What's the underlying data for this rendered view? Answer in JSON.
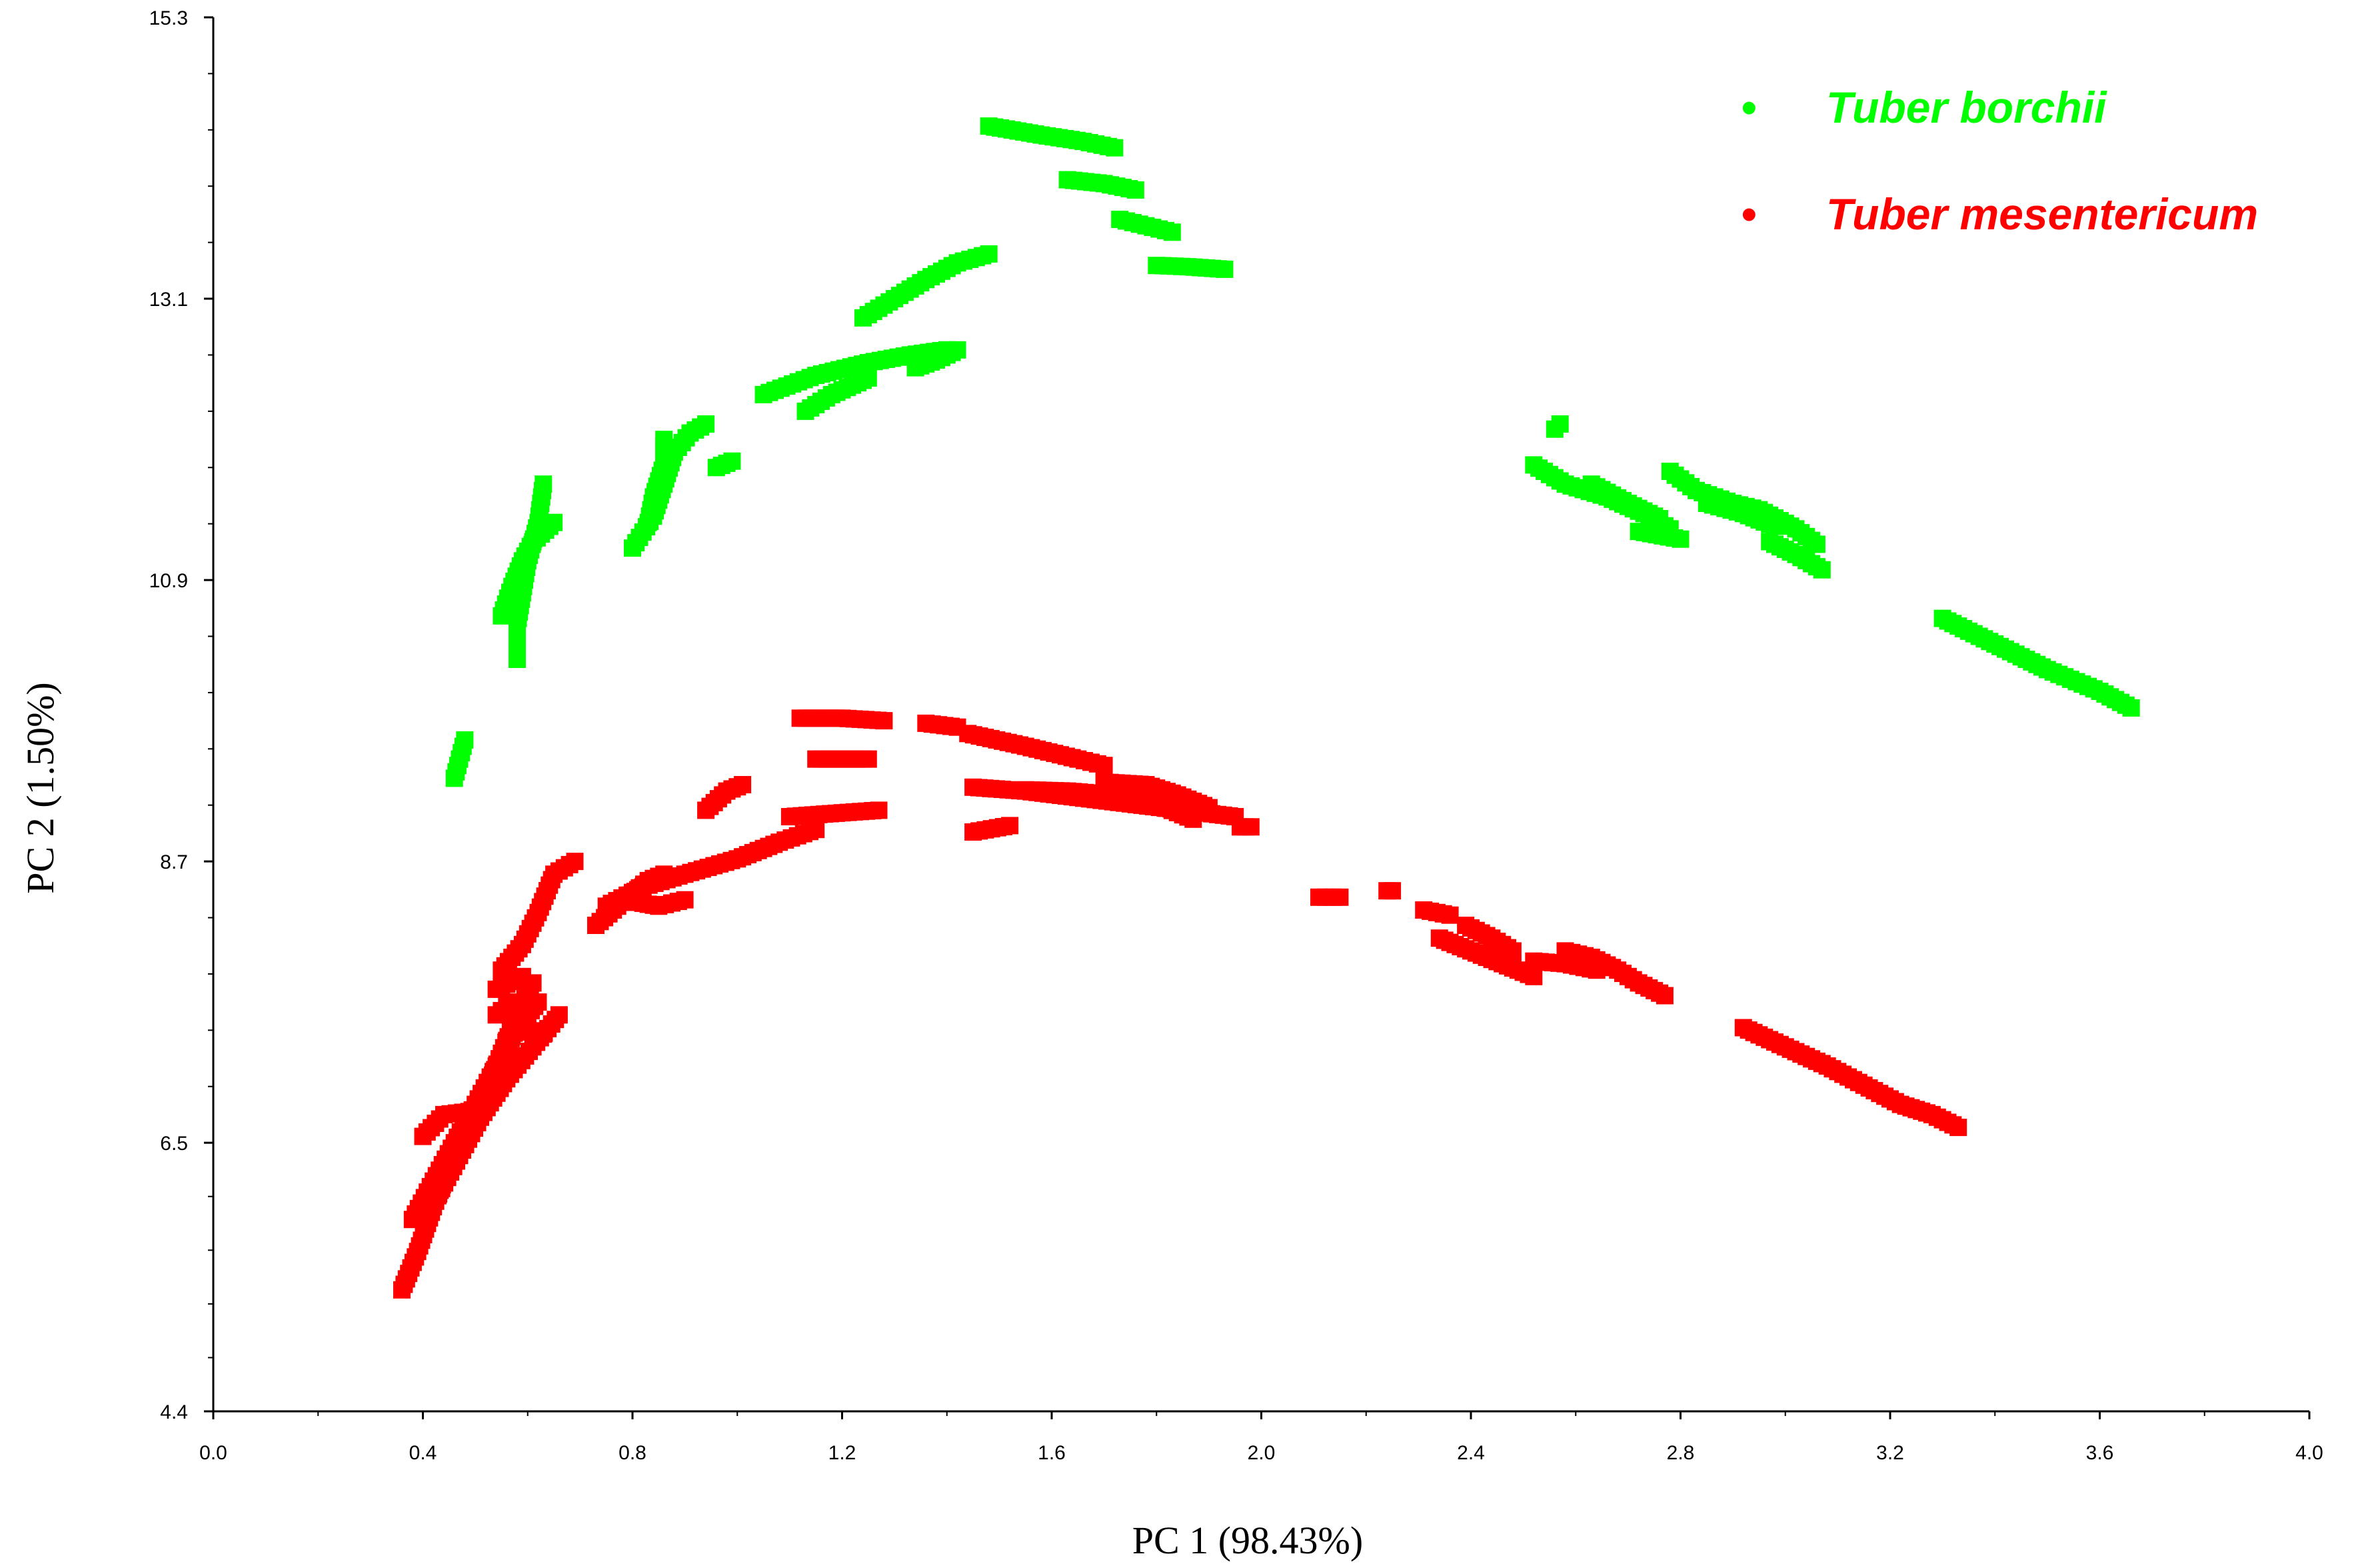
{
  "chart_data": {
    "type": "scatter",
    "title": "",
    "xlabel": "PC 1 (98.43%)",
    "ylabel": "PC 2 (1.50%)",
    "xlim": [
      0.0,
      4.0
    ],
    "ylim": [
      4.4,
      15.3
    ],
    "xticks": [
      "0.0",
      "0.4",
      "0.8",
      "1.2",
      "1.6",
      "2.0",
      "2.4",
      "2.8",
      "3.2",
      "3.6",
      "4.0"
    ],
    "yticks": [
      "4.4",
      "6.5",
      "8.7",
      "10.9",
      "13.1",
      "15.3"
    ],
    "grid": false,
    "legend_position": "top-right",
    "legend_marker": "•",
    "series": [
      {
        "name": "Tuber borchii",
        "color": "#00ff00",
        "segments": [
          [
            [
              1.48,
              14.45
            ],
            [
              1.58,
              14.38
            ],
            [
              1.66,
              14.33
            ],
            [
              1.72,
              14.28
            ]
          ],
          [
            [
              1.63,
              14.03
            ],
            [
              1.7,
              14.0
            ],
            [
              1.76,
              13.95
            ]
          ],
          [
            [
              1.73,
              13.72
            ],
            [
              1.78,
              13.67
            ],
            [
              1.83,
              13.62
            ]
          ],
          [
            [
              1.8,
              13.36
            ],
            [
              1.86,
              13.35
            ],
            [
              1.93,
              13.33
            ]
          ],
          [
            [
              1.24,
              12.95
            ],
            [
              1.3,
              13.1
            ],
            [
              1.36,
              13.25
            ],
            [
              1.42,
              13.38
            ],
            [
              1.48,
              13.45
            ]
          ],
          [
            [
              1.05,
              12.35
            ],
            [
              1.15,
              12.5
            ],
            [
              1.25,
              12.6
            ],
            [
              1.33,
              12.66
            ],
            [
              1.4,
              12.7
            ]
          ],
          [
            [
              1.13,
              12.22
            ],
            [
              1.18,
              12.35
            ],
            [
              1.25,
              12.48
            ]
          ],
          [
            [
              1.34,
              12.56
            ],
            [
              1.38,
              12.62
            ],
            [
              1.42,
              12.7
            ]
          ],
          [
            [
              0.8,
              11.15
            ],
            [
              0.84,
              11.4
            ],
            [
              0.86,
              11.65
            ],
            [
              0.88,
              11.9
            ],
            [
              0.91,
              12.05
            ],
            [
              0.94,
              12.12
            ]
          ],
          [
            [
              0.83,
              11.35
            ],
            [
              0.84,
              11.55
            ],
            [
              0.86,
              11.8
            ],
            [
              0.86,
              12.0
            ]
          ],
          [
            [
              0.96,
              11.78
            ],
            [
              0.99,
              11.83
            ]
          ],
          [
            [
              0.58,
              10.28
            ],
            [
              0.58,
              10.55
            ],
            [
              0.59,
              10.8
            ],
            [
              0.6,
              11.05
            ],
            [
              0.62,
              11.35
            ],
            [
              0.63,
              11.65
            ]
          ],
          [
            [
              0.55,
              10.62
            ],
            [
              0.57,
              10.85
            ],
            [
              0.59,
              11.05
            ],
            [
              0.61,
              11.2
            ],
            [
              0.65,
              11.35
            ]
          ],
          [
            [
              0.46,
              9.35
            ],
            [
              0.47,
              9.5
            ],
            [
              0.48,
              9.65
            ]
          ],
          [
            [
              2.57,
              12.12
            ],
            [
              2.56,
              12.08
            ]
          ],
          [
            [
              2.52,
              11.8
            ],
            [
              2.58,
              11.65
            ],
            [
              2.66,
              11.55
            ],
            [
              2.73,
              11.42
            ],
            [
              2.78,
              11.3
            ]
          ],
          [
            [
              2.63,
              11.65
            ],
            [
              2.7,
              11.5
            ],
            [
              2.76,
              11.38
            ]
          ],
          [
            [
              2.78,
              11.75
            ],
            [
              2.83,
              11.6
            ],
            [
              2.9,
              11.5
            ],
            [
              2.95,
              11.45
            ],
            [
              3.02,
              11.3
            ],
            [
              3.06,
              11.18
            ]
          ],
          [
            [
              2.72,
              11.28
            ],
            [
              2.8,
              11.22
            ]
          ],
          [
            [
              2.85,
              11.5
            ],
            [
              2.92,
              11.42
            ],
            [
              2.98,
              11.32
            ]
          ],
          [
            [
              2.97,
              11.2
            ],
            [
              3.02,
              11.1
            ],
            [
              3.07,
              10.98
            ]
          ],
          [
            [
              3.3,
              10.6
            ],
            [
              3.4,
              10.4
            ],
            [
              3.5,
              10.2
            ],
            [
              3.6,
              10.03
            ],
            [
              3.66,
              9.9
            ]
          ]
        ]
      },
      {
        "name": "Tuber mesentericum",
        "color": "#ff0000",
        "segments": [
          [
            [
              1.12,
              9.82
            ],
            [
              1.2,
              9.82
            ],
            [
              1.28,
              9.8
            ]
          ],
          [
            [
              1.36,
              9.78
            ],
            [
              1.42,
              9.75
            ]
          ],
          [
            [
              1.15,
              9.5
            ],
            [
              1.25,
              9.5
            ]
          ],
          [
            [
              1.44,
              9.7
            ],
            [
              1.55,
              9.6
            ],
            [
              1.65,
              9.5
            ],
            [
              1.7,
              9.45
            ]
          ],
          [
            [
              1.45,
              9.28
            ],
            [
              1.55,
              9.25
            ],
            [
              1.65,
              9.2
            ],
            [
              1.75,
              9.15
            ],
            [
              1.85,
              9.1
            ],
            [
              1.95,
              9.05
            ]
          ],
          [
            [
              1.55,
              9.26
            ],
            [
              1.63,
              9.25
            ],
            [
              1.72,
              9.22
            ],
            [
              1.8,
              9.15
            ],
            [
              1.87,
              9.03
            ]
          ],
          [
            [
              1.7,
              9.32
            ],
            [
              1.78,
              9.3
            ],
            [
              1.84,
              9.22
            ],
            [
              1.9,
              9.12
            ]
          ],
          [
            [
              1.45,
              8.93
            ],
            [
              1.52,
              8.98
            ]
          ],
          [
            [
              1.96,
              8.97
            ],
            [
              1.98,
              8.97
            ]
          ],
          [
            [
              0.94,
              9.1
            ],
            [
              0.98,
              9.25
            ],
            [
              1.01,
              9.3
            ]
          ],
          [
            [
              1.1,
              9.05
            ],
            [
              1.2,
              9.08
            ],
            [
              1.27,
              9.1
            ]
          ],
          [
            [
              0.75,
              8.35
            ],
            [
              0.82,
              8.5
            ],
            [
              0.9,
              8.6
            ],
            [
              1.0,
              8.72
            ],
            [
              1.08,
              8.85
            ],
            [
              1.15,
              8.95
            ]
          ],
          [
            [
              0.73,
              8.2
            ],
            [
              0.78,
              8.38
            ],
            [
              0.83,
              8.55
            ],
            [
              0.86,
              8.6
            ]
          ],
          [
            [
              0.81,
              8.38
            ],
            [
              0.85,
              8.35
            ],
            [
              0.9,
              8.4
            ]
          ],
          [
            [
              0.36,
              5.35
            ],
            [
              0.39,
              5.65
            ],
            [
              0.42,
              6.0
            ],
            [
              0.45,
              6.3
            ],
            [
              0.48,
              6.6
            ],
            [
              0.52,
              6.9
            ],
            [
              0.55,
              7.2
            ],
            [
              0.58,
              7.5
            ],
            [
              0.61,
              7.75
            ]
          ],
          [
            [
              0.38,
              5.9
            ],
            [
              0.42,
              6.2
            ],
            [
              0.46,
              6.5
            ],
            [
              0.5,
              6.8
            ],
            [
              0.54,
              7.1
            ],
            [
              0.58,
              7.4
            ],
            [
              0.62,
              7.6
            ]
          ],
          [
            [
              0.43,
              6.1
            ],
            [
              0.47,
              6.4
            ],
            [
              0.51,
              6.7
            ],
            [
              0.56,
              7.0
            ],
            [
              0.61,
              7.25
            ],
            [
              0.66,
              7.5
            ]
          ],
          [
            [
              0.54,
              7.5
            ],
            [
              0.57,
              7.6
            ],
            [
              0.6,
              7.55
            ]
          ],
          [
            [
              0.56,
              7.3
            ],
            [
              0.59,
              7.4
            ],
            [
              0.63,
              7.35
            ]
          ],
          [
            [
              0.4,
              6.55
            ],
            [
              0.44,
              6.72
            ],
            [
              0.5,
              6.75
            ]
          ],
          [
            [
              0.55,
              7.85
            ],
            [
              0.59,
              8.05
            ],
            [
              0.62,
              8.3
            ],
            [
              0.65,
              8.6
            ],
            [
              0.69,
              8.7
            ]
          ],
          [
            [
              0.54,
              7.7
            ],
            [
              0.59,
              7.8
            ]
          ],
          [
            [
              2.11,
              8.42
            ],
            [
              2.15,
              8.42
            ]
          ],
          [
            [
              2.24,
              8.47
            ],
            [
              2.25,
              8.47
            ]
          ],
          [
            [
              2.31,
              8.32
            ],
            [
              2.36,
              8.28
            ]
          ],
          [
            [
              2.34,
              8.1
            ],
            [
              2.4,
              8.0
            ],
            [
              2.46,
              7.9
            ],
            [
              2.52,
              7.8
            ]
          ],
          [
            [
              2.39,
              8.2
            ],
            [
              2.44,
              8.1
            ],
            [
              2.48,
              8.0
            ]
          ],
          [
            [
              2.58,
              8.0
            ],
            [
              2.63,
              7.95
            ],
            [
              2.68,
              7.85
            ],
            [
              2.72,
              7.75
            ],
            [
              2.77,
              7.65
            ]
          ],
          [
            [
              2.52,
              7.92
            ],
            [
              2.58,
              7.9
            ],
            [
              2.64,
              7.85
            ]
          ],
          [
            [
              2.92,
              7.4
            ],
            [
              3.0,
              7.25
            ],
            [
              3.08,
              7.1
            ],
            [
              3.15,
              6.95
            ],
            [
              3.22,
              6.8
            ],
            [
              3.28,
              6.72
            ],
            [
              3.33,
              6.62
            ]
          ]
        ]
      }
    ]
  }
}
